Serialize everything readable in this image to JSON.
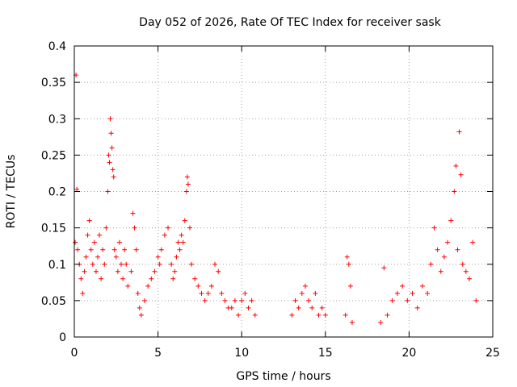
{
  "chart_data": {
    "type": "scatter",
    "title": "Day 052 of 2026, Rate Of TEC Index for receiver sask",
    "xlabel": "GPS time / hours",
    "ylabel": "ROTI / TECUs",
    "xlim": [
      0,
      25
    ],
    "ylim": [
      0,
      0.4
    ],
    "xticks": [
      0,
      5,
      10,
      15,
      20,
      25
    ],
    "xtick_labels": [
      "0",
      "5",
      "10",
      "15",
      "20",
      "25"
    ],
    "yticks": [
      0,
      0.05,
      0.1,
      0.15,
      0.2,
      0.25,
      0.3,
      0.35,
      0.4
    ],
    "ytick_labels": [
      "0",
      "0.05",
      "0.1",
      "0.15",
      "0.2",
      "0.25",
      "0.3",
      "0.35",
      "0.4"
    ],
    "grid": true,
    "marker": "+",
    "color": "#ff0000",
    "series": [
      {
        "points": [
          [
            0.1,
            0.36
          ],
          [
            0.15,
            0.203
          ],
          [
            0.05,
            0.13
          ],
          [
            0.2,
            0.12
          ],
          [
            0.3,
            0.1
          ],
          [
            0.4,
            0.08
          ],
          [
            0.5,
            0.06
          ],
          [
            0.6,
            0.09
          ],
          [
            0.7,
            0.11
          ],
          [
            0.8,
            0.14
          ],
          [
            0.9,
            0.16
          ],
          [
            1.0,
            0.12
          ],
          [
            1.1,
            0.1
          ],
          [
            1.2,
            0.13
          ],
          [
            1.3,
            0.09
          ],
          [
            1.4,
            0.11
          ],
          [
            1.5,
            0.14
          ],
          [
            1.6,
            0.08
          ],
          [
            1.7,
            0.12
          ],
          [
            1.8,
            0.1
          ],
          [
            1.9,
            0.15
          ],
          [
            2.0,
            0.2
          ],
          [
            2.05,
            0.25
          ],
          [
            2.1,
            0.24
          ],
          [
            2.15,
            0.3
          ],
          [
            2.2,
            0.28
          ],
          [
            2.25,
            0.26
          ],
          [
            2.3,
            0.23
          ],
          [
            2.35,
            0.22
          ],
          [
            2.4,
            0.12
          ],
          [
            2.5,
            0.11
          ],
          [
            2.6,
            0.09
          ],
          [
            2.7,
            0.13
          ],
          [
            2.8,
            0.1
          ],
          [
            2.9,
            0.08
          ],
          [
            3.0,
            0.12
          ],
          [
            3.1,
            0.1
          ],
          [
            3.2,
            0.07
          ],
          [
            3.4,
            0.09
          ],
          [
            3.5,
            0.17
          ],
          [
            3.6,
            0.15
          ],
          [
            3.7,
            0.12
          ],
          [
            3.8,
            0.06
          ],
          [
            3.9,
            0.04
          ],
          [
            4.0,
            0.03
          ],
          [
            4.2,
            0.05
          ],
          [
            4.4,
            0.07
          ],
          [
            4.6,
            0.08
          ],
          [
            4.8,
            0.09
          ],
          [
            5.0,
            0.11
          ],
          [
            5.1,
            0.1
          ],
          [
            5.2,
            0.12
          ],
          [
            5.4,
            0.14
          ],
          [
            5.6,
            0.15
          ],
          [
            5.8,
            0.1
          ],
          [
            5.9,
            0.08
          ],
          [
            6.0,
            0.09
          ],
          [
            6.1,
            0.11
          ],
          [
            6.2,
            0.13
          ],
          [
            6.3,
            0.12
          ],
          [
            6.4,
            0.14
          ],
          [
            6.5,
            0.13
          ],
          [
            6.6,
            0.16
          ],
          [
            6.7,
            0.2
          ],
          [
            6.75,
            0.22
          ],
          [
            6.8,
            0.21
          ],
          [
            6.9,
            0.15
          ],
          [
            7.0,
            0.1
          ],
          [
            7.2,
            0.08
          ],
          [
            7.4,
            0.07
          ],
          [
            7.6,
            0.06
          ],
          [
            7.8,
            0.05
          ],
          [
            8.0,
            0.06
          ],
          [
            8.2,
            0.07
          ],
          [
            8.4,
            0.1
          ],
          [
            8.6,
            0.09
          ],
          [
            8.8,
            0.06
          ],
          [
            9.0,
            0.05
          ],
          [
            9.2,
            0.04
          ],
          [
            9.4,
            0.04
          ],
          [
            9.6,
            0.05
          ],
          [
            9.8,
            0.03
          ],
          [
            10.0,
            0.05
          ],
          [
            10.2,
            0.06
          ],
          [
            10.4,
            0.04
          ],
          [
            10.6,
            0.05
          ],
          [
            10.8,
            0.03
          ],
          [
            13.0,
            0.03
          ],
          [
            13.2,
            0.05
          ],
          [
            13.4,
            0.04
          ],
          [
            13.6,
            0.06
          ],
          [
            13.8,
            0.07
          ],
          [
            14.0,
            0.05
          ],
          [
            14.2,
            0.04
          ],
          [
            14.4,
            0.06
          ],
          [
            14.6,
            0.03
          ],
          [
            14.8,
            0.04
          ],
          [
            15.0,
            0.03
          ],
          [
            16.2,
            0.03
          ],
          [
            16.3,
            0.11
          ],
          [
            16.4,
            0.1
          ],
          [
            16.5,
            0.07
          ],
          [
            16.6,
            0.02
          ],
          [
            18.3,
            0.02
          ],
          [
            18.5,
            0.095
          ],
          [
            18.7,
            0.03
          ],
          [
            19.0,
            0.05
          ],
          [
            19.3,
            0.06
          ],
          [
            19.6,
            0.07
          ],
          [
            19.9,
            0.05
          ],
          [
            20.2,
            0.06
          ],
          [
            20.5,
            0.04
          ],
          [
            20.8,
            0.07
          ],
          [
            21.1,
            0.06
          ],
          [
            21.3,
            0.1
          ],
          [
            21.5,
            0.15
          ],
          [
            21.7,
            0.12
          ],
          [
            21.9,
            0.09
          ],
          [
            22.1,
            0.11
          ],
          [
            22.3,
            0.13
          ],
          [
            22.5,
            0.16
          ],
          [
            22.7,
            0.2
          ],
          [
            22.8,
            0.235
          ],
          [
            22.9,
            0.12
          ],
          [
            23.0,
            0.282
          ],
          [
            23.1,
            0.223
          ],
          [
            23.2,
            0.1
          ],
          [
            23.4,
            0.09
          ],
          [
            23.6,
            0.08
          ],
          [
            23.8,
            0.13
          ],
          [
            24.0,
            0.05
          ]
        ]
      }
    ]
  }
}
